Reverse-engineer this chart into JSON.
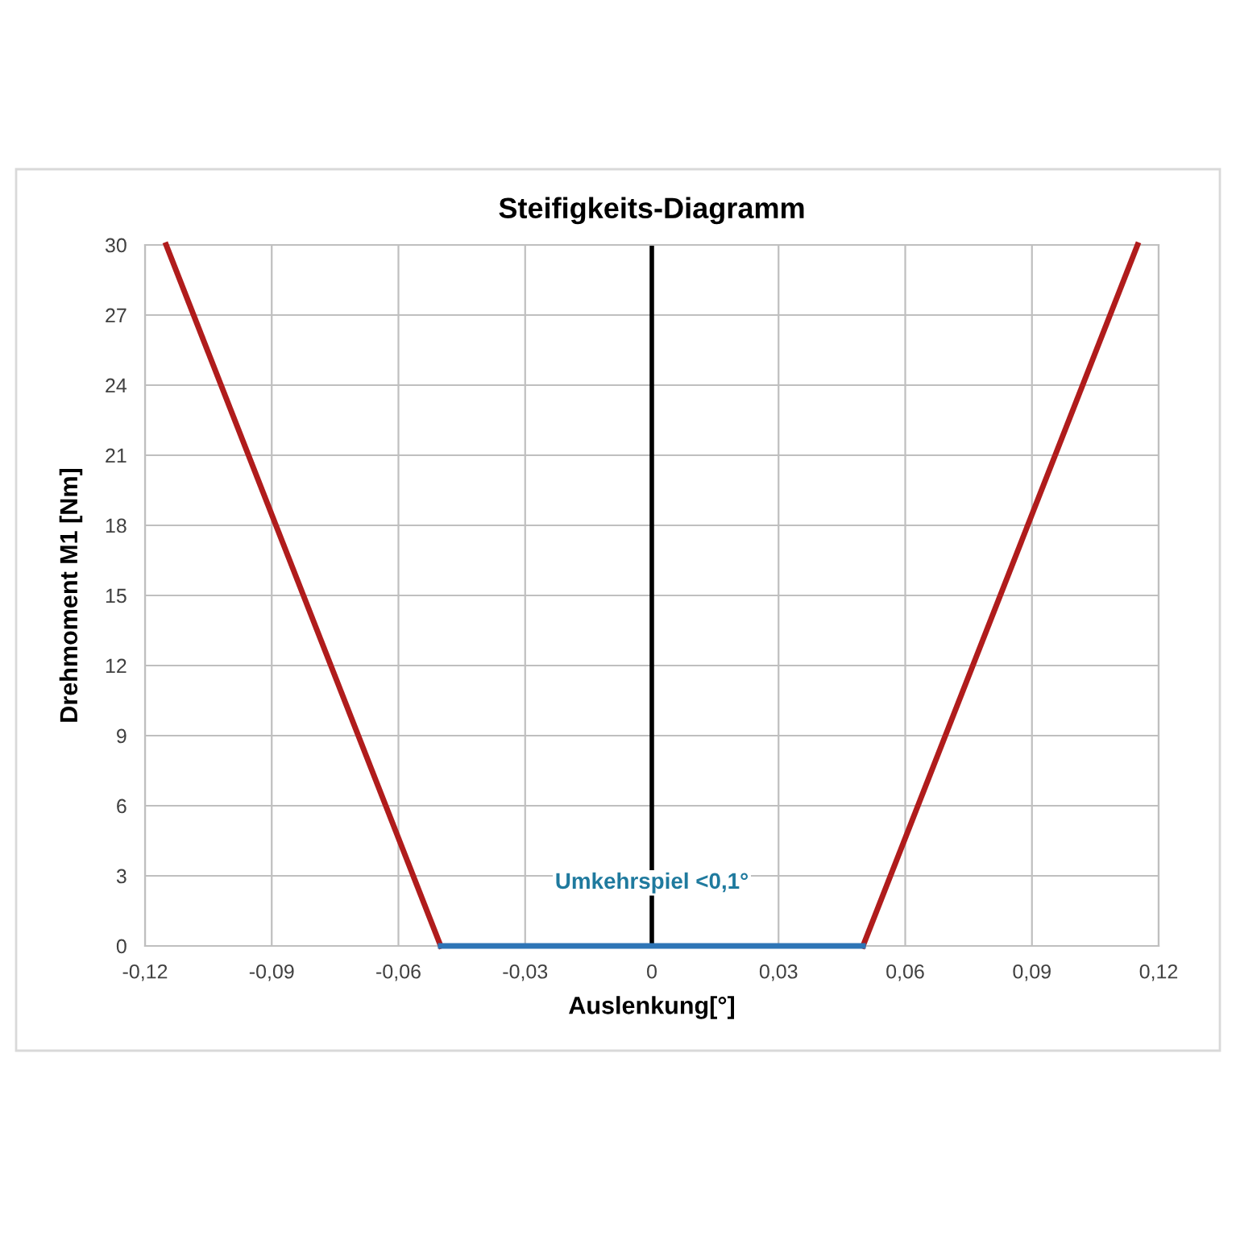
{
  "chart_data": {
    "type": "line",
    "title": "Steifigkeits-Diagramm",
    "xlabel": "Auslenkung[°]",
    "ylabel": "Drehmoment M1 [Nm]",
    "series": [
      {
        "x": [
          -0.115,
          -0.05
        ],
        "values": [
          30,
          0
        ],
        "color": "#b01c1c"
      },
      {
        "x": [
          0.05,
          0.115
        ],
        "values": [
          0,
          30
        ],
        "color": "#b01c1c"
      },
      {
        "x": [
          -0.05,
          0.05
        ],
        "values": [
          0,
          0
        ],
        "color": "#2e75b6"
      }
    ],
    "ref_lines": [
      {
        "axis": "x",
        "value": 0,
        "color": "#000000"
      }
    ],
    "annotations": [
      "Umkehrspiel <0,1°"
    ],
    "xlim": [
      -0.12,
      0.12
    ],
    "xticks": [
      {
        "value": -0.12,
        "label": "-0,12"
      },
      {
        "value": -0.09,
        "label": "-0,09"
      },
      {
        "value": -0.06,
        "label": "-0,06"
      },
      {
        "value": -0.03,
        "label": "-0,03"
      },
      0,
      {
        "value": 0.03,
        "label": "0,03"
      },
      {
        "value": 0.06,
        "label": "0,06"
      },
      {
        "value": 0.09,
        "label": "0,09"
      },
      {
        "value": 0.12,
        "label": "0,12"
      }
    ],
    "ylim": [
      0,
      30
    ],
    "yticks": [
      0,
      3,
      6,
      9,
      12,
      15,
      18,
      21,
      24,
      27,
      30
    ],
    "grid": true,
    "legend": false,
    "marker": "none",
    "line_style": "solid"
  }
}
